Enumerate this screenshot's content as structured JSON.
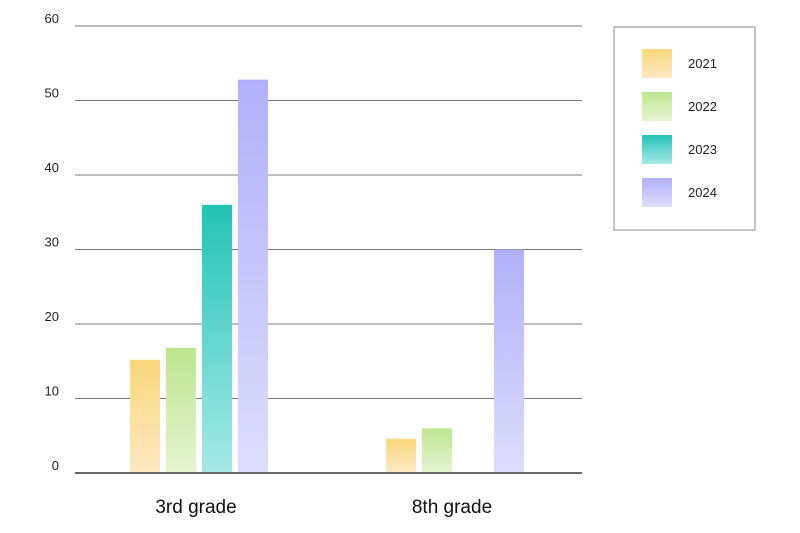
{
  "chart_data": {
    "type": "bar",
    "title": "",
    "xlabel": "",
    "ylabel": "",
    "categories": [
      "3rd grade",
      "8th grade"
    ],
    "series": [
      {
        "name": "2021",
        "values": [
          15.2,
          4.6
        ],
        "color_top": "#fbd67a",
        "color_bottom": "#fde8c2"
      },
      {
        "name": "2022",
        "values": [
          16.8,
          6.0
        ],
        "color_top": "#bde58e",
        "color_bottom": "#e5f4d3"
      },
      {
        "name": "2023",
        "values": [
          36.0,
          0
        ],
        "color_top": "#22c3b6",
        "color_bottom": "#a5e9e6"
      },
      {
        "name": "2024",
        "values": [
          52.8,
          30.0
        ],
        "color_top": "#b1b0fa",
        "color_bottom": "#dedcfd"
      }
    ],
    "ylim": [
      0,
      60
    ],
    "yticks": [
      "0",
      "10",
      "20",
      "30",
      "40",
      "50",
      "60"
    ],
    "grid": true,
    "legend_position": "top-right"
  }
}
